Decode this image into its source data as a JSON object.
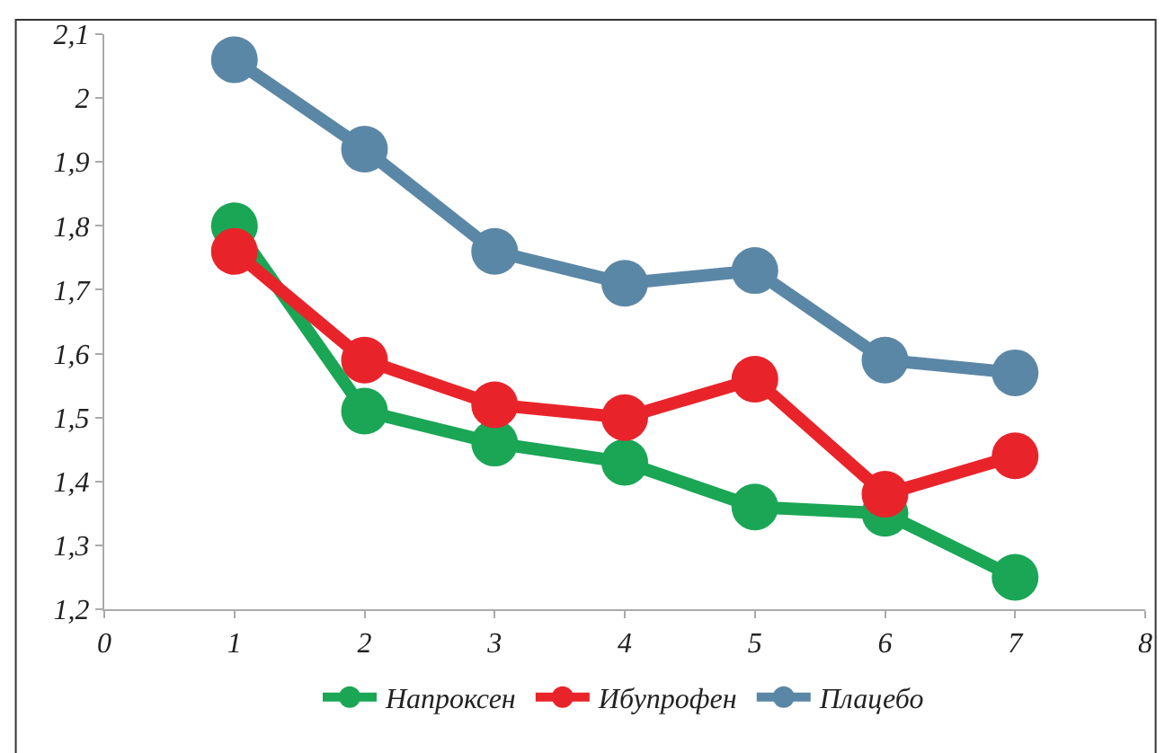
{
  "chart_data": {
    "type": "line",
    "x": [
      1,
      2,
      3,
      4,
      5,
      6,
      7
    ],
    "series": [
      {
        "name": "Напроксен",
        "color": "#1aa655",
        "values": [
          1.8,
          1.51,
          1.46,
          1.43,
          1.36,
          1.35,
          1.25
        ]
      },
      {
        "name": "Ибупрофен",
        "color": "#e8242a",
        "values": [
          1.76,
          1.59,
          1.52,
          1.5,
          1.56,
          1.38,
          1.44
        ]
      },
      {
        "name": "Плацебо",
        "color": "#5b87a6",
        "values": [
          2.06,
          1.92,
          1.76,
          1.71,
          1.73,
          1.59,
          1.57
        ]
      }
    ],
    "xlim": [
      0,
      8
    ],
    "xticks": [
      0,
      1,
      2,
      3,
      4,
      5,
      6,
      7,
      8
    ],
    "ylim": [
      1.2,
      2.1
    ],
    "yticks": [
      {
        "value": 1.2,
        "label": "1,2"
      },
      {
        "value": 1.3,
        "label": "1,3"
      },
      {
        "value": 1.4,
        "label": "1,4"
      },
      {
        "value": 1.5,
        "label": "1,5"
      },
      {
        "value": 1.6,
        "label": "1,6"
      },
      {
        "value": 1.7,
        "label": "1,7"
      },
      {
        "value": 1.8,
        "label": "1,8"
      },
      {
        "value": 1.9,
        "label": "1,9"
      },
      {
        "value": 2,
        "label": "2"
      },
      {
        "value": 2.1,
        "label": "2,1"
      }
    ],
    "legend": "bottom",
    "marker": "circle",
    "line_style": "solid"
  }
}
